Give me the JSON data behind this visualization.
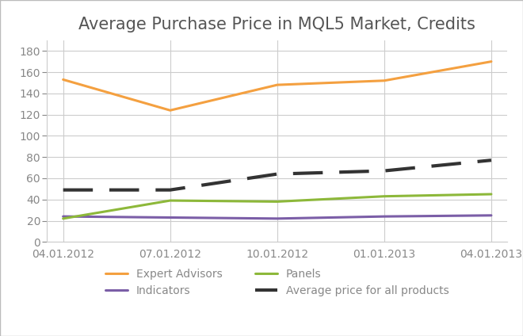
{
  "title": "Average Purchase Price in MQL5 Market, Credits",
  "x_labels": [
    "04.01.2012",
    "07.01.2012",
    "10.01.2012",
    "01.01.2013",
    "04.01.2013"
  ],
  "x_values": [
    0,
    1,
    2,
    3,
    4
  ],
  "series_order": [
    "Expert Advisors",
    "Indicators",
    "Panels",
    "Average price for all products"
  ],
  "series": {
    "Expert Advisors": {
      "values": [
        153,
        124,
        148,
        152,
        170
      ],
      "color": "#F4A040",
      "linewidth": 2.2,
      "linestyle": "-",
      "dashes": null
    },
    "Indicators": {
      "values": [
        24,
        23,
        22,
        24,
        25
      ],
      "color": "#7B5EA7",
      "linewidth": 2.2,
      "linestyle": "-",
      "dashes": null
    },
    "Panels": {
      "values": [
        22,
        39,
        38,
        43,
        45
      ],
      "color": "#8DB83A",
      "linewidth": 2.2,
      "linestyle": "-",
      "dashes": null
    },
    "Average price for all products": {
      "values": [
        49,
        49,
        64,
        67,
        77
      ],
      "color": "#333333",
      "linewidth": 3.0,
      "linestyle": "--",
      "dashes": [
        9,
        5
      ]
    }
  },
  "ylim": [
    0,
    190
  ],
  "yticks": [
    0,
    20,
    40,
    60,
    80,
    100,
    120,
    140,
    160,
    180
  ],
  "background_color": "#FFFFFF",
  "grid_color": "#CCCCCC",
  "title_fontsize": 15,
  "tick_label_fontsize": 10,
  "legend_fontsize": 10,
  "border_color": "#AAAAAA"
}
